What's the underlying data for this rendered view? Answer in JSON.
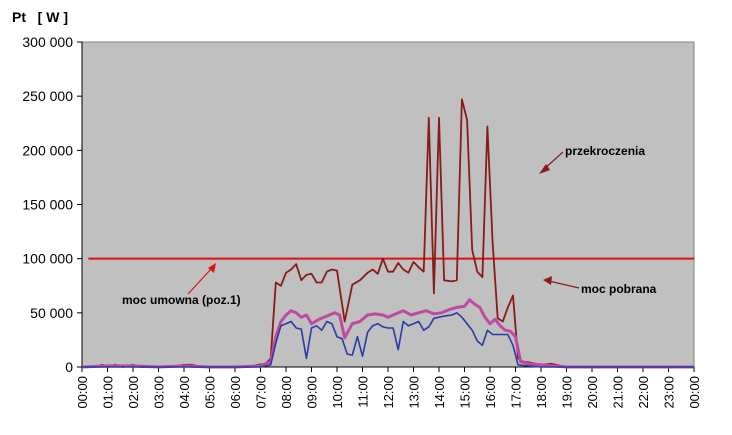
{
  "chart_data": {
    "type": "line",
    "ylabel": "Pt   [ W ]",
    "xlabel": "",
    "title": "",
    "ylim": [
      0,
      300000
    ],
    "yticks": [
      0,
      50000,
      100000,
      150000,
      200000,
      250000,
      300000
    ],
    "ytick_labels": [
      "0",
      "50 000",
      "100 000",
      "150 000",
      "200 000",
      "250 000",
      "300 000"
    ],
    "xlim": [
      0,
      24
    ],
    "x_tick_labels": [
      "00:00",
      "01:00",
      "02:00",
      "03:00",
      "04:00",
      "05:00",
      "06:00",
      "07:00",
      "08:00",
      "09:00",
      "10:00",
      "11:00",
      "12:00",
      "13:00",
      "14:00",
      "15:00",
      "16:00",
      "17:00",
      "18:00",
      "19:00",
      "20:00",
      "21:00",
      "22:00",
      "23:00",
      "00:00"
    ],
    "grid": false,
    "plot_background": "#c0c0c0",
    "reference_line": {
      "value": 100000,
      "color": "#dd1111"
    },
    "series": [
      {
        "color": "#8b1a1a",
        "points": [
          [
            0.0,
            0
          ],
          [
            0.5,
            0
          ],
          [
            0.8,
            2000
          ],
          [
            1.0,
            0
          ],
          [
            1.3,
            2000
          ],
          [
            1.6,
            0
          ],
          [
            2.0,
            2000
          ],
          [
            2.3,
            0
          ],
          [
            2.7,
            0
          ],
          [
            3.0,
            0
          ],
          [
            3.5,
            0
          ],
          [
            4.0,
            2000
          ],
          [
            4.3,
            2000
          ],
          [
            4.7,
            0
          ],
          [
            5.0,
            0
          ],
          [
            5.5,
            0
          ],
          [
            6.0,
            0
          ],
          [
            6.5,
            0
          ],
          [
            6.9,
            2000
          ],
          [
            7.2,
            3000
          ],
          [
            7.4,
            8000
          ],
          [
            7.6,
            78000
          ],
          [
            7.8,
            75000
          ],
          [
            8.0,
            87000
          ],
          [
            8.2,
            90000
          ],
          [
            8.4,
            95000
          ],
          [
            8.6,
            80000
          ],
          [
            8.8,
            85000
          ],
          [
            9.0,
            86000
          ],
          [
            9.2,
            78000
          ],
          [
            9.4,
            78000
          ],
          [
            9.6,
            88000
          ],
          [
            9.8,
            90000
          ],
          [
            10.0,
            89000
          ],
          [
            10.3,
            42000
          ],
          [
            10.6,
            76000
          ],
          [
            10.9,
            80000
          ],
          [
            11.2,
            87000
          ],
          [
            11.4,
            90000
          ],
          [
            11.6,
            86000
          ],
          [
            11.8,
            100000
          ],
          [
            12.0,
            88000
          ],
          [
            12.2,
            88000
          ],
          [
            12.4,
            96000
          ],
          [
            12.6,
            90000
          ],
          [
            12.8,
            87000
          ],
          [
            13.0,
            97000
          ],
          [
            13.2,
            92000
          ],
          [
            13.4,
            88000
          ],
          [
            13.6,
            230000
          ],
          [
            13.8,
            68000
          ],
          [
            14.0,
            230000
          ],
          [
            14.2,
            80000
          ],
          [
            14.5,
            79000
          ],
          [
            14.7,
            80000
          ],
          [
            14.9,
            247000
          ],
          [
            15.1,
            228000
          ],
          [
            15.3,
            108000
          ],
          [
            15.5,
            88000
          ],
          [
            15.7,
            83000
          ],
          [
            15.9,
            222000
          ],
          [
            16.1,
            115000
          ],
          [
            16.3,
            45000
          ],
          [
            16.5,
            42000
          ],
          [
            16.7,
            55000
          ],
          [
            16.9,
            66000
          ],
          [
            17.1,
            8000
          ],
          [
            17.3,
            5000
          ],
          [
            17.6,
            4000
          ],
          [
            18.0,
            2000
          ],
          [
            18.4,
            3000
          ],
          [
            19.0,
            0
          ],
          [
            19.5,
            0
          ],
          [
            20.0,
            0
          ],
          [
            21.0,
            0
          ],
          [
            22.0,
            0
          ],
          [
            23.0,
            0
          ],
          [
            24.0,
            0
          ]
        ]
      },
      {
        "color": "#c04aa0",
        "points": [
          [
            0.0,
            0
          ],
          [
            1.0,
            1000
          ],
          [
            2.0,
            1000
          ],
          [
            3.0,
            0
          ],
          [
            4.0,
            1000
          ],
          [
            5.0,
            0
          ],
          [
            6.0,
            0
          ],
          [
            7.0,
            1000
          ],
          [
            7.4,
            5000
          ],
          [
            7.6,
            28000
          ],
          [
            7.8,
            42000
          ],
          [
            8.0,
            48000
          ],
          [
            8.2,
            52000
          ],
          [
            8.4,
            50000
          ],
          [
            8.6,
            46000
          ],
          [
            8.8,
            48000
          ],
          [
            9.0,
            40000
          ],
          [
            9.3,
            44000
          ],
          [
            9.6,
            47000
          ],
          [
            9.9,
            50000
          ],
          [
            10.1,
            48000
          ],
          [
            10.3,
            27000
          ],
          [
            10.6,
            40000
          ],
          [
            10.9,
            42000
          ],
          [
            11.2,
            48000
          ],
          [
            11.5,
            49000
          ],
          [
            11.8,
            48000
          ],
          [
            12.0,
            46000
          ],
          [
            12.3,
            49000
          ],
          [
            12.6,
            52000
          ],
          [
            12.9,
            48000
          ],
          [
            13.2,
            50000
          ],
          [
            13.5,
            52000
          ],
          [
            13.8,
            49000
          ],
          [
            14.1,
            50000
          ],
          [
            14.4,
            53000
          ],
          [
            14.7,
            55000
          ],
          [
            15.0,
            56000
          ],
          [
            15.2,
            62000
          ],
          [
            15.4,
            58000
          ],
          [
            15.6,
            55000
          ],
          [
            15.8,
            46000
          ],
          [
            16.0,
            40000
          ],
          [
            16.2,
            44000
          ],
          [
            16.4,
            38000
          ],
          [
            16.6,
            34000
          ],
          [
            16.8,
            33000
          ],
          [
            17.0,
            28000
          ],
          [
            17.2,
            5000
          ],
          [
            17.5,
            3000
          ],
          [
            18.0,
            2000
          ],
          [
            19.0,
            0
          ],
          [
            20.0,
            0
          ],
          [
            22.0,
            0
          ],
          [
            24.0,
            0
          ]
        ]
      },
      {
        "color": "#2a3aa8",
        "points": [
          [
            0.0,
            0
          ],
          [
            2.0,
            0
          ],
          [
            4.0,
            0
          ],
          [
            6.0,
            0
          ],
          [
            7.0,
            0
          ],
          [
            7.4,
            2000
          ],
          [
            7.6,
            22000
          ],
          [
            7.8,
            38000
          ],
          [
            8.0,
            40000
          ],
          [
            8.2,
            42000
          ],
          [
            8.4,
            36000
          ],
          [
            8.6,
            35000
          ],
          [
            8.8,
            8000
          ],
          [
            9.0,
            36000
          ],
          [
            9.2,
            38000
          ],
          [
            9.4,
            34000
          ],
          [
            9.6,
            42000
          ],
          [
            9.8,
            40000
          ],
          [
            10.0,
            28000
          ],
          [
            10.2,
            26000
          ],
          [
            10.4,
            12000
          ],
          [
            10.6,
            11000
          ],
          [
            10.8,
            28000
          ],
          [
            11.0,
            10000
          ],
          [
            11.2,
            32000
          ],
          [
            11.4,
            38000
          ],
          [
            11.6,
            40000
          ],
          [
            11.8,
            37000
          ],
          [
            12.0,
            36000
          ],
          [
            12.2,
            36000
          ],
          [
            12.4,
            16000
          ],
          [
            12.6,
            42000
          ],
          [
            12.8,
            38000
          ],
          [
            13.0,
            40000
          ],
          [
            13.2,
            42000
          ],
          [
            13.4,
            34000
          ],
          [
            13.6,
            37000
          ],
          [
            13.8,
            45000
          ],
          [
            14.0,
            46000
          ],
          [
            14.2,
            47000
          ],
          [
            14.5,
            48000
          ],
          [
            14.7,
            50000
          ],
          [
            14.9,
            46000
          ],
          [
            15.1,
            40000
          ],
          [
            15.3,
            34000
          ],
          [
            15.5,
            24000
          ],
          [
            15.7,
            20000
          ],
          [
            15.9,
            34000
          ],
          [
            16.1,
            30000
          ],
          [
            16.3,
            30000
          ],
          [
            16.5,
            30000
          ],
          [
            16.7,
            30000
          ],
          [
            16.9,
            20000
          ],
          [
            17.1,
            2000
          ],
          [
            17.5,
            1000
          ],
          [
            18.0,
            0
          ],
          [
            20.0,
            0
          ],
          [
            24.0,
            0
          ]
        ]
      }
    ],
    "annotations": [
      {
        "text": "przekroczenia"
      },
      {
        "text": "moc pobrana"
      },
      {
        "text": "moc umowna (poz.1)"
      }
    ]
  }
}
